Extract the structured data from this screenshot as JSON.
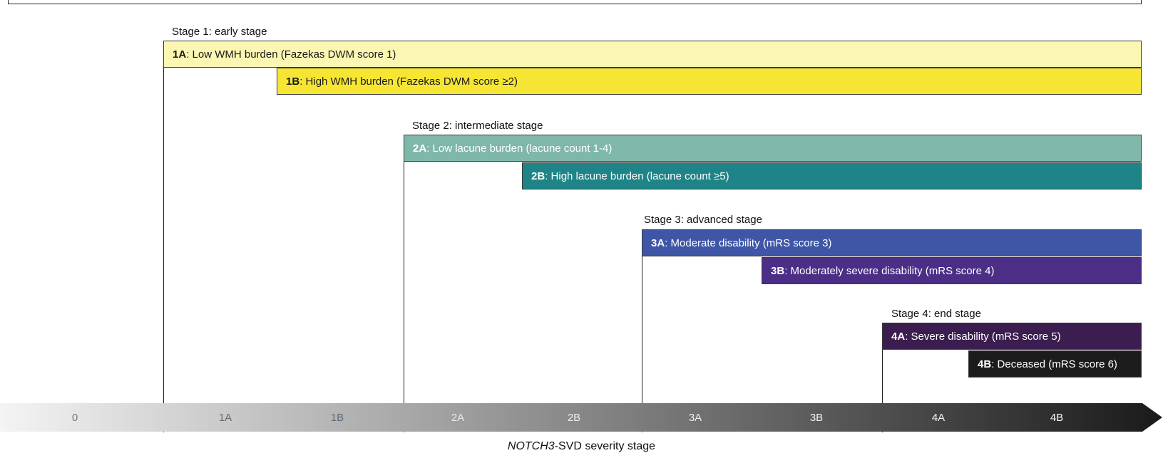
{
  "stages": [
    {
      "label": "Stage 1: early stage",
      "sub": [
        {
          "code": "1A",
          "text": ": Low WMH burden (Fazekas DWM score 1)",
          "fill": "#fbf6b1",
          "text_color": "#1a1a1a"
        },
        {
          "code": "1B",
          "text": ": High WMH burden (Fazekas DWM score ≥2)",
          "fill": "#f6e633",
          "text_color": "#1a1a1a"
        }
      ]
    },
    {
      "label": "Stage 2: intermediate stage",
      "sub": [
        {
          "code": "2A",
          "text": ": Low lacune burden (lacune count 1-4)",
          "fill": "#7fb8ab",
          "text_color": "#ffffff"
        },
        {
          "code": "2B",
          "text": ": High lacune burden (lacune count ≥5)",
          "fill": "#1e8487",
          "text_color": "#ffffff"
        }
      ]
    },
    {
      "label": "Stage 3: advanced stage",
      "sub": [
        {
          "code": "3A",
          "text": ": Moderate disability (mRS score 3)",
          "fill": "#3f56a6",
          "text_color": "#ffffff"
        },
        {
          "code": "3B",
          "text": ": Moderately severe disability (mRS score 4)",
          "fill": "#4b2e86",
          "text_color": "#ffffff"
        }
      ]
    },
    {
      "label": "Stage 4: end stage",
      "sub": [
        {
          "code": "4A",
          "text": ": Severe disability (mRS score 5)",
          "fill": "#3b1d4f",
          "text_color": "#ffffff"
        },
        {
          "code": "4B",
          "text": ": Deceased (mRS score 6)",
          "fill": "#1c1c1c",
          "text_color": "#ffffff"
        }
      ]
    }
  ],
  "axis": {
    "ticks": [
      "0",
      "1A",
      "1B",
      "2A",
      "2B",
      "3A",
      "3B",
      "4A",
      "4B"
    ],
    "title_gene": "NOTCH3",
    "title_rest": "-SVD severity stage",
    "gradient_start": "#f4f4f4",
    "gradient_end": "#1a1a1a"
  }
}
